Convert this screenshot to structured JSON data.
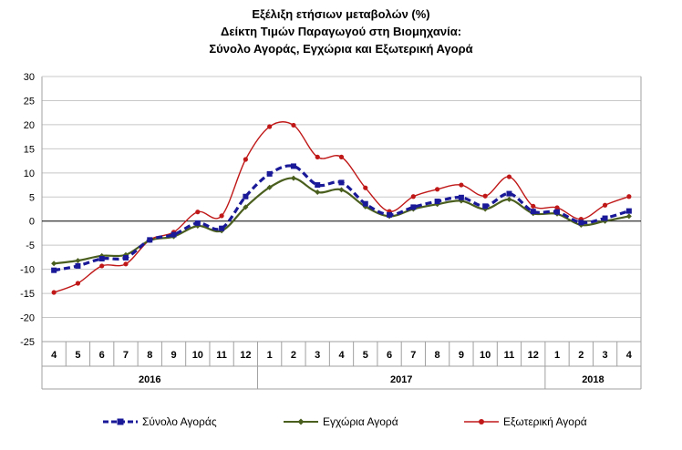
{
  "chart_data": {
    "type": "line",
    "title_lines": [
      "Εξέλιξη ετήσιων μεταβολών (%)",
      "Δείκτη Τιμών Παραγωγού στη Βιομηχανία:",
      "Σύνολο Αγοράς, Εγχώρια και Εξωτερική Αγορά"
    ],
    "x": [
      "4",
      "5",
      "6",
      "7",
      "8",
      "9",
      "10",
      "11",
      "12",
      "1",
      "2",
      "3",
      "4",
      "5",
      "6",
      "7",
      "8",
      "9",
      "10",
      "11",
      "12",
      "1",
      "2",
      "3",
      "4"
    ],
    "year_groups": [
      {
        "label": "2016",
        "start": 0,
        "end": 8
      },
      {
        "label": "2017",
        "start": 9,
        "end": 20
      },
      {
        "label": "2018",
        "start": 21,
        "end": 24
      }
    ],
    "ylim": [
      -25,
      30
    ],
    "yticks": [
      -25,
      -20,
      -15,
      -10,
      -5,
      0,
      5,
      10,
      15,
      20,
      25,
      30
    ],
    "grid": true,
    "legend_position": "bottom",
    "series": [
      {
        "name": "Σύνολο Αγοράς",
        "color": "#1a1a99",
        "style": "dashed",
        "marker": "square",
        "values": [
          -10.2,
          -9.3,
          -7.8,
          -7.6,
          -3.9,
          -2.8,
          -0.4,
          -1.5,
          5.1,
          9.8,
          11.4,
          7.5,
          8.0,
          3.6,
          1.3,
          2.9,
          4.1,
          4.9,
          3.1,
          5.7,
          2.0,
          1.9,
          -0.3,
          0.6,
          2.1
        ]
      },
      {
        "name": "Εγχώρια Αγορά",
        "color": "#4a5e1e",
        "style": "solid",
        "marker": "diamond",
        "values": [
          -8.8,
          -8.2,
          -7.2,
          -7.0,
          -4.0,
          -3.2,
          -1.0,
          -2.0,
          2.9,
          7.0,
          8.9,
          6.0,
          6.5,
          3.0,
          1.0,
          2.5,
          3.5,
          4.2,
          2.5,
          4.5,
          1.6,
          1.5,
          -0.8,
          0.0,
          1.0
        ]
      },
      {
        "name": "Εξωτερική Αγορά",
        "color": "#c01818",
        "style": "solid",
        "marker": "circle",
        "values": [
          -14.8,
          -12.9,
          -9.3,
          -8.9,
          -3.9,
          -2.3,
          1.9,
          1.1,
          12.8,
          19.6,
          19.9,
          13.3,
          13.3,
          6.9,
          2.0,
          5.1,
          6.6,
          7.5,
          5.2,
          9.2,
          3.1,
          2.8,
          0.4,
          3.3,
          5.1
        ]
      }
    ]
  }
}
